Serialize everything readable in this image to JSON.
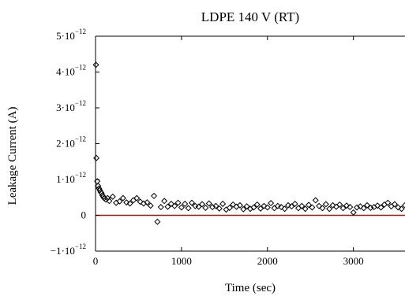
{
  "chart_data": {
    "type": "scatter",
    "title": "LDPE 140 V (RT)",
    "xlabel": "Time (sec)",
    "ylabel": "Leakage Current (A)",
    "xlim": [
      0,
      3600
    ],
    "ylim": [
      -1e-12,
      5e-12
    ],
    "x_ticks": [
      {
        "value": 0,
        "label": "0"
      },
      {
        "value": 1000,
        "label": "1000"
      },
      {
        "value": 2000,
        "label": "2000"
      },
      {
        "value": 3000,
        "label": "3000"
      }
    ],
    "y_ticks": [
      {
        "value": -1e-12,
        "mantissa": "−1",
        "exponent": "−12"
      },
      {
        "value": 0,
        "mantissa": "0",
        "exponent": ""
      },
      {
        "value": 1e-12,
        "mantissa": "1",
        "exponent": "−12"
      },
      {
        "value": 2e-12,
        "mantissa": "2",
        "exponent": "−12"
      },
      {
        "value": 3e-12,
        "mantissa": "3",
        "exponent": "−12"
      },
      {
        "value": 4e-12,
        "mantissa": "4",
        "exponent": "−12"
      },
      {
        "value": 5e-12,
        "mantissa": "5",
        "exponent": "−12"
      }
    ],
    "reference_line": {
      "y": 0,
      "color": "#cc0000"
    },
    "marker": "diamond",
    "marker_color": "#000000",
    "grid": false,
    "series": [
      {
        "x": [
          5,
          10,
          20,
          30,
          40,
          50,
          60,
          70,
          80,
          90,
          100,
          120,
          140,
          160,
          200,
          240,
          280,
          320,
          360,
          400,
          440,
          480,
          520,
          560,
          600,
          640,
          680,
          720,
          760,
          800,
          840,
          880,
          920,
          960,
          1000,
          1040,
          1080,
          1120,
          1160,
          1200,
          1240,
          1280,
          1320,
          1360,
          1400,
          1440,
          1480,
          1520,
          1560,
          1600,
          1640,
          1680,
          1720,
          1760,
          1800,
          1840,
          1880,
          1920,
          1960,
          2000,
          2040,
          2080,
          2120,
          2160,
          2200,
          2240,
          2280,
          2320,
          2360,
          2400,
          2440,
          2480,
          2520,
          2560,
          2600,
          2640,
          2680,
          2720,
          2760,
          2800,
          2840,
          2880,
          2920,
          2960,
          3000,
          3040,
          3080,
          3120,
          3160,
          3200,
          3240,
          3280,
          3320,
          3360,
          3400,
          3440,
          3480,
          3520,
          3560,
          3600
        ],
        "y": [
          4.2e-12,
          1.6e-12,
          9.5e-13,
          8.2e-13,
          7.5e-13,
          7e-13,
          6.5e-13,
          6.2e-13,
          5.6e-13,
          5.2e-13,
          4.8e-13,
          4.4e-13,
          4.8e-13,
          4e-13,
          5.2e-13,
          3.5e-13,
          3.9e-13,
          4.8e-13,
          3.6e-13,
          3.3e-13,
          4.2e-13,
          4.8e-13,
          3.8e-13,
          3.3e-13,
          3.6e-13,
          2.7e-13,
          5.4e-13,
          -1.8e-13,
          2.3e-13,
          4e-13,
          2.4e-13,
          3.2e-13,
          2.6e-13,
          3.5e-13,
          2.2e-13,
          3.2e-13,
          2e-13,
          3.5e-13,
          2.6e-13,
          2.4e-13,
          3.1e-13,
          2.1e-13,
          3.3e-13,
          2.3e-13,
          2.6e-13,
          1.9e-13,
          3.2e-13,
          1.6e-13,
          2.1e-13,
          3e-13,
          2.4e-13,
          2.8e-13,
          1.7e-13,
          2.5e-13,
          1.8e-13,
          2.2e-13,
          3e-13,
          1.9e-13,
          2.6e-13,
          2.2e-13,
          3.4e-13,
          2e-13,
          2.6e-13,
          2.3e-13,
          1.8e-13,
          2.8e-13,
          2.5e-13,
          3.2e-13,
          2e-13,
          2.6e-13,
          1.8e-13,
          2.9e-13,
          2.2e-13,
          4.2e-13,
          2.6e-13,
          2e-13,
          3.1e-13,
          1.8e-13,
          2.8e-13,
          2.4e-13,
          3e-13,
          2e-13,
          2.7e-13,
          2.3e-13,
          8e-14,
          2.2e-13,
          2.5e-13,
          2e-13,
          2.8e-13,
          2.1e-13,
          2.3e-13,
          2.7e-13,
          2.2e-13,
          3e-13,
          3.5e-13,
          2.5e-13,
          3.1e-13,
          2.2e-13,
          1.8e-13,
          2.8e-13
        ]
      }
    ]
  }
}
